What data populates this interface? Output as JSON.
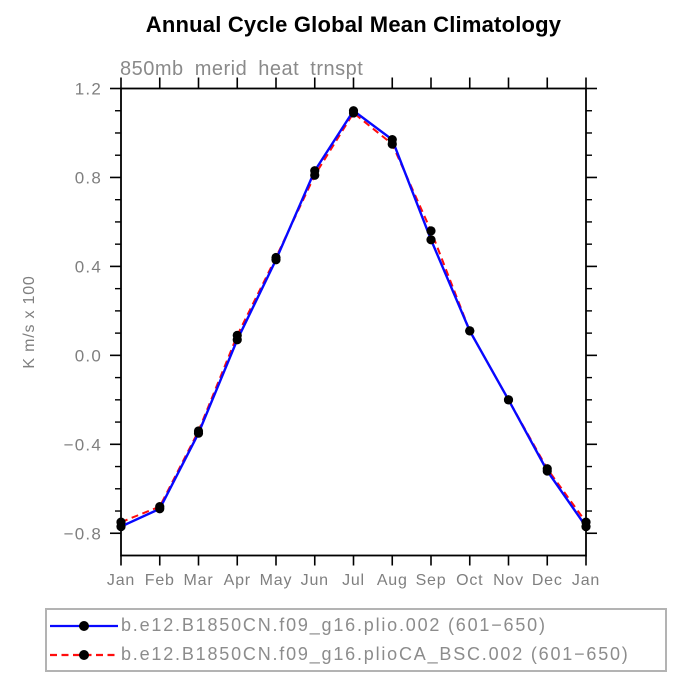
{
  "title": "Annual Cycle Global Mean Climatology",
  "subtitle": "850mb merid heat trnspt",
  "chart_data": {
    "type": "line",
    "categories": [
      "Jan",
      "Feb",
      "Mar",
      "Apr",
      "May",
      "Jun",
      "Jul",
      "Aug",
      "Sep",
      "Oct",
      "Nov",
      "Dec",
      "Jan"
    ],
    "series": [
      {
        "name": "b.e12.B1850CN.f09_g16.plio.002 (601−650)",
        "color": "#0808ff",
        "line_style": "solid",
        "marker": "filled-circle",
        "marker_color": "#000000",
        "values": [
          -0.77,
          -0.69,
          -0.35,
          0.07,
          0.43,
          0.83,
          1.1,
          0.97,
          0.52,
          0.11,
          -0.2,
          -0.52,
          -0.77
        ]
      },
      {
        "name": "b.e12.B1850CN.f09_g16.plioCA_BSC.002 (601−650)",
        "color": "#ff0d0d",
        "line_style": "dashed",
        "marker": "filled-circle",
        "marker_color": "#000000",
        "values": [
          -0.75,
          -0.68,
          -0.34,
          0.09,
          0.44,
          0.81,
          1.09,
          0.95,
          0.56,
          0.11,
          -0.2,
          -0.51,
          -0.75
        ]
      }
    ],
    "xlabel": "",
    "ylabel": "K m/s x 100",
    "ylim": [
      -0.9,
      1.2
    ],
    "yticks_major": [
      1.2,
      0.8,
      0.4,
      0.0,
      -0.4,
      -0.8
    ],
    "ytick_labels": [
      "1.2",
      "0.8",
      "0.4",
      "0.0",
      "−0.4",
      "−0.8"
    ],
    "y_minor_tick_interval": 0.1,
    "grid": false,
    "legend_position": "bottom",
    "axis_color": "#000000",
    "tick_text_color": "#7f7f7f"
  }
}
